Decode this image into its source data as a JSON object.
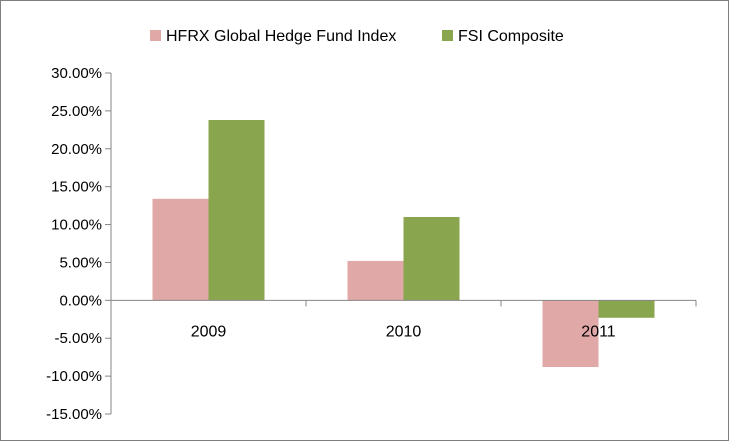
{
  "chart_data": {
    "type": "bar",
    "categories": [
      "2009",
      "2010",
      "2011"
    ],
    "series": [
      {
        "name": "HFRX Global Hedge Fund Index",
        "values": [
          13.4,
          5.2,
          -8.8
        ],
        "color": "#e0a8a6"
      },
      {
        "name": "FSI Composite",
        "values": [
          23.8,
          11.0,
          -2.3
        ],
        "color": "#89a54e"
      }
    ],
    "ylim": [
      -15,
      30
    ],
    "yticks": [
      30,
      25,
      20,
      15,
      10,
      5,
      0,
      -5,
      -10,
      -15
    ],
    "ytick_labels": [
      "30.00%",
      "25.00%",
      "20.00%",
      "15.00%",
      "10.00%",
      "5.00%",
      "0.00%",
      "-5.00%",
      "-10.00%",
      "-15.00%"
    ],
    "grid": false,
    "legend": "top-center"
  }
}
